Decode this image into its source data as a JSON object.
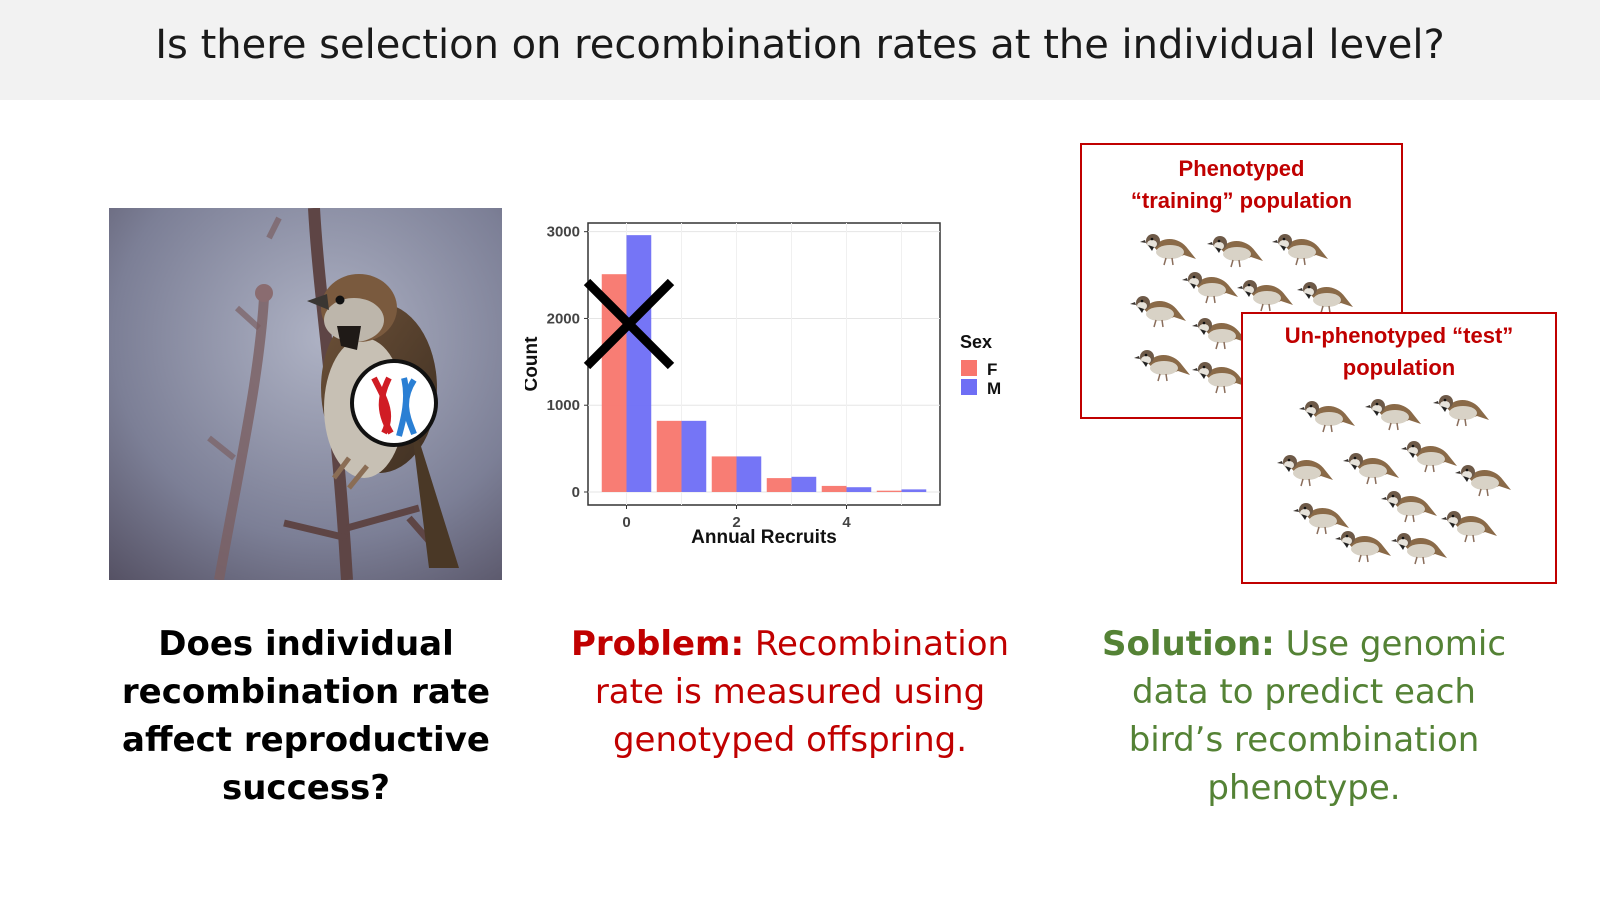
{
  "title": "Is there selection on recombination rates at the individual level?",
  "captions": {
    "left": "Does individual recombination rate affect reproductive success?",
    "middle_prefix": "Problem:",
    "middle_text": " Recombination rate is measured using genotyped offspring.",
    "right_prefix": "Solution:",
    "right_text": " Use genomic data to predict each bird’s recombination phenotype."
  },
  "populations": {
    "training_line1": "Phenotyped",
    "training_line2": "“training” population",
    "test_line1": "Un-phenotyped  “test”",
    "test_line2": "population"
  },
  "colors": {
    "female": "#f8766d",
    "male": "#6e6ef5",
    "problem_red": "#c00000",
    "solution_green": "#548235"
  },
  "chart_data": {
    "type": "bar",
    "xlabel": "Annual Recruits",
    "ylabel": "Count",
    "x": [
      0,
      1,
      2,
      3,
      4,
      5
    ],
    "xticks": [
      0,
      2,
      4
    ],
    "yticks": [
      0,
      1000,
      2000,
      3000
    ],
    "ylim": [
      0,
      3100
    ],
    "legend_title": "Sex",
    "series": [
      {
        "name": "F",
        "values": [
          2510,
          820,
          410,
          160,
          70,
          15
        ]
      },
      {
        "name": "M",
        "values": [
          2960,
          820,
          410,
          175,
          55,
          30
        ]
      }
    ],
    "annotation": "X over bars at 0"
  }
}
